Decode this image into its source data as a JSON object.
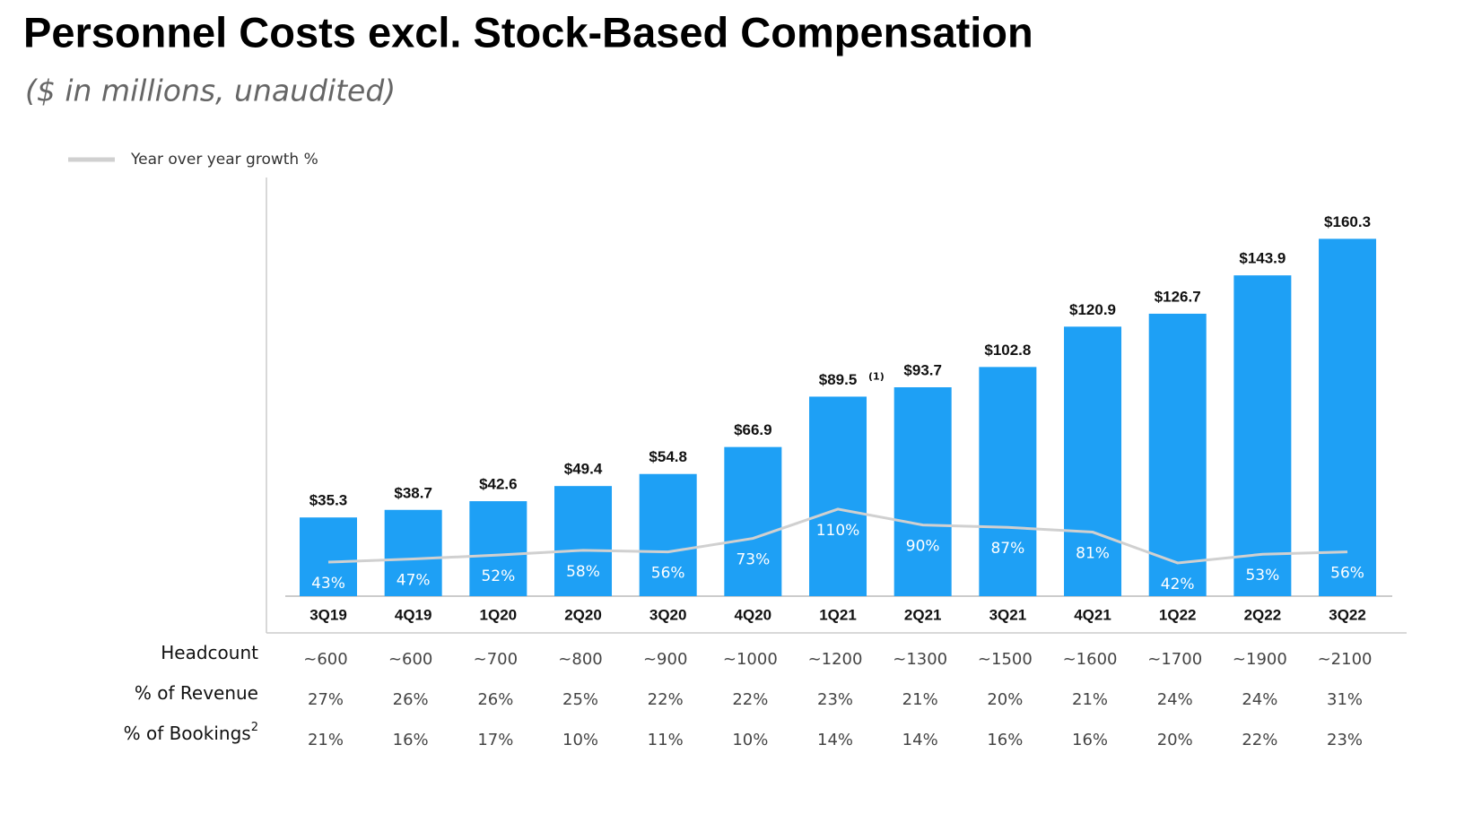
{
  "chart_data": {
    "type": "bar",
    "title": "Personnel Costs excl. Stock-Based Compensation",
    "subtitle": "($ in millions, unaudited)",
    "categories": [
      "3Q19",
      "4Q19",
      "1Q20",
      "2Q20",
      "3Q20",
      "4Q20",
      "1Q21",
      "2Q21",
      "3Q21",
      "4Q21",
      "1Q22",
      "2Q22",
      "3Q22"
    ],
    "values": [
      35.3,
      38.7,
      42.6,
      49.4,
      54.8,
      66.9,
      89.5,
      93.7,
      102.8,
      120.9,
      126.7,
      143.9,
      160.3
    ],
    "value_labels": [
      "$35.3",
      "$38.7",
      "$42.6",
      "$49.4",
      "$54.8",
      "$66.9",
      "$89.5",
      "$93.7",
      "$102.8",
      "$120.9",
      "$126.7",
      "$143.9",
      "$160.3"
    ],
    "color": "#1ea0f5",
    "ylim": [
      0,
      187
    ],
    "annotations": [
      {
        "text": "(1)",
        "category": "1Q21"
      }
    ],
    "series": [
      {
        "type": "line",
        "name": "Year over year growth %",
        "color": "#d0d0d0",
        "axis": "y2",
        "values": [
          43,
          47,
          52,
          58,
          56,
          73,
          110,
          90,
          87,
          81,
          42,
          53,
          56
        ],
        "value_labels": [
          "43%",
          "47%",
          "52%",
          "58%",
          "56%",
          "73%",
          "110%",
          "90%",
          "87%",
          "81%",
          "42%",
          "53%",
          "56%"
        ]
      }
    ],
    "y2lim": [
      0,
      527
    ]
  },
  "table": {
    "rows": [
      {
        "label": "Headcount",
        "values": [
          "~600",
          "~600",
          "~700",
          "~800",
          "~900",
          "~1000",
          "~1200",
          "~1300",
          "~1500",
          "~1600",
          "~1700",
          "~1900",
          "~2100"
        ]
      },
      {
        "label": "% of Revenue",
        "values": [
          "27%",
          "26%",
          "26%",
          "25%",
          "22%",
          "22%",
          "23%",
          "21%",
          "20%",
          "21%",
          "24%",
          "24%",
          "31%"
        ]
      },
      {
        "label": "% of Bookings",
        "label_superscript": "2",
        "values": [
          "21%",
          "16%",
          "17%",
          "10%",
          "11%",
          "10%",
          "14%",
          "14%",
          "16%",
          "16%",
          "20%",
          "22%",
          "23%"
        ]
      }
    ]
  }
}
